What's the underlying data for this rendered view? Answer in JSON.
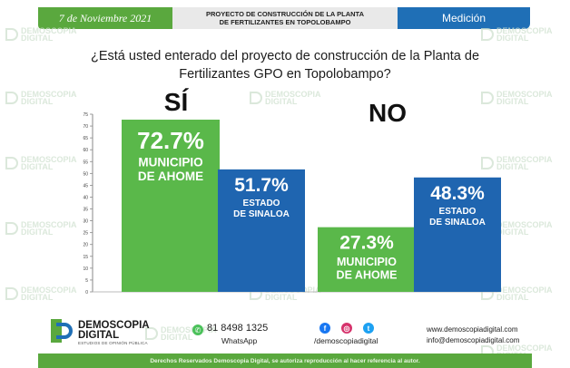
{
  "header": {
    "date": "7 de Noviembre 2021",
    "title_line1": "PROYECTO DE CONSTRUCCIÓN DE LA PLANTA",
    "title_line2": "DE FERTILIZANTES EN TOPOLOBAMPO",
    "category": "Medición"
  },
  "question": {
    "line1": "¿Está usted enterado del proyecto de construcción de la Planta de",
    "line2": "Fertilizantes GPO en Topolobampo?"
  },
  "watermark": {
    "line1": "DEMOSCOPIA",
    "line2": "DIGITAL"
  },
  "chart_data": {
    "type": "bar",
    "categories": [
      "SÍ",
      "NO"
    ],
    "series": [
      {
        "name": "MUNICIPIO DE AHOME",
        "values": [
          72.7,
          27.3
        ],
        "color": "#5ab84a"
      },
      {
        "name": "ESTADO DE SINALOA",
        "values": [
          51.7,
          48.3
        ],
        "color": "#1f65b0"
      }
    ],
    "value_labels": {
      "si_ahome": "72.7%",
      "si_sinaloa": "51.7%",
      "no_ahome": "27.3%",
      "no_sinaloa": "48.3%"
    },
    "bar_labels": {
      "municipio_line1": "MUNICIPIO",
      "municipio_line2": "DE AHOME",
      "estado_line1": "ESTADO",
      "estado_line2": "DE SINALOA"
    },
    "ylim": [
      0,
      75
    ],
    "yticks": [
      "0",
      "5",
      "10",
      "15",
      "20",
      "25",
      "30",
      "35",
      "40",
      "45",
      "50",
      "55",
      "60",
      "65",
      "70",
      "75"
    ],
    "title": "",
    "xlabel": "",
    "ylabel": ""
  },
  "footer": {
    "brand_line1": "DEMOSCOPIA",
    "brand_line2": "DIGITAL",
    "brand_tagline": "ESTUDIOS DE OPINIÓN PÚBLICA",
    "phone": "81 8498 1325",
    "whatsapp_label": "WhatsApp",
    "social_handle": "/demoscopiadigital",
    "website": "www.demoscopiadigital.com",
    "email": "info@demoscopiadigital.com",
    "rights": "Derechos Reservados Demoscopia Digital, se autoriza reproducción al hacer referencia al autor."
  },
  "colors": {
    "green": "#5aa83e",
    "blue": "#1f6fb6",
    "facebook": "#1877f2",
    "instagram": "#d6336c",
    "twitter": "#1da1f2"
  },
  "icons": {
    "whatsapp": "whatsapp-icon",
    "facebook": "facebook-icon",
    "instagram": "instagram-icon",
    "twitter": "twitter-icon"
  }
}
